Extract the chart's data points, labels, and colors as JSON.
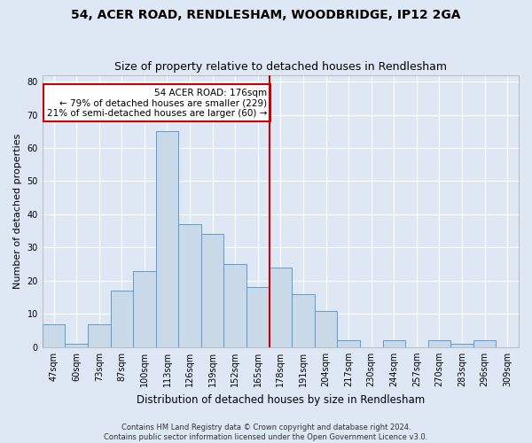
{
  "title1": "54, ACER ROAD, RENDLESHAM, WOODBRIDGE, IP12 2GA",
  "title2": "Size of property relative to detached houses in Rendlesham",
  "xlabel": "Distribution of detached houses by size in Rendlesham",
  "ylabel": "Number of detached properties",
  "footnote": "Contains HM Land Registry data © Crown copyright and database right 2024.\nContains public sector information licensed under the Open Government Licence v3.0.",
  "bin_labels": [
    "47sqm",
    "60sqm",
    "73sqm",
    "87sqm",
    "100sqm",
    "113sqm",
    "126sqm",
    "139sqm",
    "152sqm",
    "165sqm",
    "178sqm",
    "191sqm",
    "204sqm",
    "217sqm",
    "230sqm",
    "244sqm",
    "257sqm",
    "270sqm",
    "283sqm",
    "296sqm",
    "309sqm"
  ],
  "bar_heights": [
    7,
    1,
    7,
    17,
    23,
    65,
    37,
    34,
    25,
    18,
    24,
    16,
    11,
    2,
    0,
    2,
    0,
    2,
    1,
    2,
    0
  ],
  "bar_color": "#c9d9e8",
  "bar_edge_color": "#5b9bd5",
  "annotation_line_color": "#cc0000",
  "annotation_box_text": "54 ACER ROAD: 176sqm\n← 79% of detached houses are smaller (229)\n21% of semi-detached houses are larger (60) →",
  "annotation_box_color": "#cc0000",
  "ylim": [
    0,
    82
  ],
  "yticks": [
    0,
    10,
    20,
    30,
    40,
    50,
    60,
    70,
    80
  ],
  "background_color": "#dde8f4",
  "plot_background": "#dde8f4",
  "grid_color": "#ffffff",
  "title1_fontsize": 10,
  "title2_fontsize": 9,
  "xlabel_fontsize": 8.5,
  "ylabel_fontsize": 8,
  "tick_fontsize": 7,
  "annot_fontsize": 7.5,
  "footnote_fontsize": 6
}
